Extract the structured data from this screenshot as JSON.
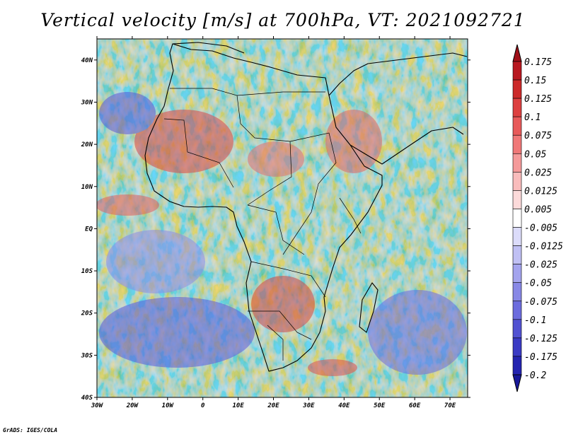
{
  "title": "Vertical velocity [m/s] at 700hPa, VT: 2021092721",
  "credit": "GrADS: IGES/COLA",
  "map": {
    "lon_range": [
      -30,
      75
    ],
    "lat_range": [
      -40,
      45
    ],
    "lon_ticks": [
      {
        "value": -30,
        "label": "30W"
      },
      {
        "value": -20,
        "label": "20W"
      },
      {
        "value": -10,
        "label": "10W"
      },
      {
        "value": 0,
        "label": "0"
      },
      {
        "value": 10,
        "label": "10E"
      },
      {
        "value": 20,
        "label": "20E"
      },
      {
        "value": 30,
        "label": "30E"
      },
      {
        "value": 40,
        "label": "40E"
      },
      {
        "value": 50,
        "label": "50E"
      },
      {
        "value": 60,
        "label": "60E"
      },
      {
        "value": 70,
        "label": "70E"
      }
    ],
    "lat_ticks": [
      {
        "value": 40,
        "label": "40N"
      },
      {
        "value": 30,
        "label": "30N"
      },
      {
        "value": 20,
        "label": "20N"
      },
      {
        "value": 10,
        "label": "10N"
      },
      {
        "value": 0,
        "label": "EQ"
      },
      {
        "value": -10,
        "label": "10S"
      },
      {
        "value": -20,
        "label": "20S"
      },
      {
        "value": -30,
        "label": "30S"
      },
      {
        "value": -40,
        "label": "40S"
      }
    ]
  },
  "colorbar": {
    "levels": [
      {
        "label": "0.175",
        "color": "#b81820"
      },
      {
        "label": "0.15",
        "color": "#cc2a2a"
      },
      {
        "label": "0.125",
        "color": "#dd4040"
      },
      {
        "label": "0.1",
        "color": "#e85a5a"
      },
      {
        "label": "0.075",
        "color": "#f07878"
      },
      {
        "label": "0.05",
        "color": "#f59a9a"
      },
      {
        "label": "0.025",
        "color": "#f9bcbc"
      },
      {
        "label": "0.0125",
        "color": "#fcdada"
      },
      {
        "label": "0.005",
        "color": "#ffffff"
      },
      {
        "label": "-0.005",
        "color": "#dcdcfa"
      },
      {
        "label": "-0.0125",
        "color": "#c0c0f4"
      },
      {
        "label": "-0.025",
        "color": "#a4a4ee"
      },
      {
        "label": "-0.05",
        "color": "#8888e6"
      },
      {
        "label": "-0.075",
        "color": "#6c6cde"
      },
      {
        "label": "-0.1",
        "color": "#5252d2"
      },
      {
        "label": "-0.125",
        "color": "#3a3ac4"
      },
      {
        "label": "-0.175",
        "color": "#2424b0"
      }
    ],
    "bottom_label": "-0.2",
    "top_color": "#a01018",
    "bottom_color": "#18189a"
  }
}
